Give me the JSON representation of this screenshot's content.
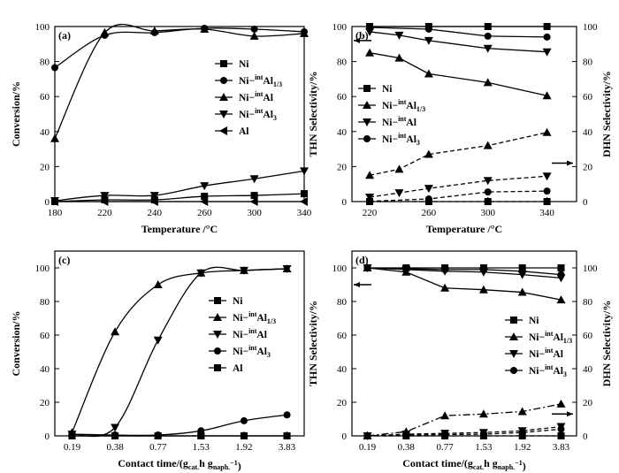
{
  "chart_data": [
    {
      "type": "line",
      "panel_label": "(a)",
      "xlabel": "Temperature /°C",
      "ylabel": "Conversion/%",
      "x_categories": [
        "180",
        "220",
        "240",
        "260",
        "300",
        "340"
      ],
      "xlim": [
        0,
        5
      ],
      "ylim": [
        0,
        100
      ],
      "yticks": [
        "0",
        "20",
        "40",
        "60",
        "80",
        "100"
      ],
      "legend_position": "right",
      "series": [
        {
          "name": "Ni",
          "marker": "square",
          "x": [
            0,
            1,
            2,
            3,
            4,
            5
          ],
          "values": [
            0,
            1,
            1,
            3,
            3.5,
            4.5
          ]
        },
        {
          "name": "Ni-intAl1/3",
          "marker": "circle",
          "x": [
            0,
            1,
            2,
            3,
            4,
            5
          ],
          "values": [
            76.5,
            95,
            96.5,
            99,
            98.5,
            97
          ]
        },
        {
          "name": "Ni-intAl",
          "marker": "triangle-up",
          "x": [
            0,
            1,
            2,
            3,
            4,
            5
          ],
          "values": [
            36,
            96.5,
            97.5,
            98.5,
            94.5,
            96
          ]
        },
        {
          "name": "Ni-intAl3",
          "marker": "triangle-down",
          "x": [
            0,
            1,
            2,
            3,
            4,
            5
          ],
          "values": [
            0.5,
            3.5,
            3.5,
            9,
            13,
            17.5
          ]
        },
        {
          "name": "Al",
          "marker": "triangle-left",
          "x": [
            0,
            1,
            2,
            3,
            4,
            5
          ],
          "values": [
            0,
            0,
            0,
            0,
            0,
            0
          ]
        }
      ]
    },
    {
      "type": "line",
      "panel_label": "(b)",
      "xlabel": "Temperature /°C",
      "ylabel": "THN Selectivity/%",
      "y2label": "DHN Selectivity/%",
      "x_categories": [
        "220",
        "260",
        "300",
        "340"
      ],
      "xlim": [
        -0.3,
        3.5
      ],
      "ylim": [
        0,
        100
      ],
      "yticks": [
        "0",
        "20",
        "40",
        "60",
        "80",
        "100"
      ],
      "legend_position": "left",
      "series": [
        {
          "name": "Ni",
          "marker": "square",
          "axis": "THN",
          "x": [
            0,
            1,
            2,
            3
          ],
          "values": [
            100,
            100,
            100,
            100
          ]
        },
        {
          "name": "Ni-intAl1/3",
          "marker": "triangle-up",
          "axis": "THN",
          "x": [
            0,
            0.5,
            1,
            2,
            3
          ],
          "values": [
            85,
            82,
            73,
            68,
            60.5
          ]
        },
        {
          "name": "Ni-intAl",
          "marker": "triangle-down",
          "axis": "THN",
          "x": [
            0,
            0.5,
            1,
            2,
            3
          ],
          "values": [
            97,
            95,
            92,
            87.5,
            85.5
          ]
        },
        {
          "name": "Ni-intAl3",
          "marker": "circle",
          "axis": "THN",
          "x": [
            0,
            1,
            2,
            3
          ],
          "values": [
            99.5,
            98.5,
            94.5,
            94
          ]
        },
        {
          "name": "Ni-intAl1/3 (DHN)",
          "marker": "triangle-up",
          "axis": "DHN",
          "x": [
            0,
            0.5,
            1,
            2,
            3
          ],
          "values": [
            15,
            18.5,
            27,
            32,
            39.5
          ]
        },
        {
          "name": "Ni-intAl (DHN)",
          "marker": "triangle-down",
          "axis": "DHN",
          "x": [
            0,
            0.5,
            1,
            2,
            3
          ],
          "values": [
            2.5,
            5,
            7.5,
            12,
            14.5
          ]
        },
        {
          "name": "Ni-intAl3 (DHN)",
          "marker": "circle",
          "axis": "DHN",
          "x": [
            0,
            1,
            2,
            3
          ],
          "values": [
            0.2,
            1.5,
            5.5,
            6
          ]
        },
        {
          "name": "Ni (DHN)",
          "marker": "square",
          "axis": "DHN",
          "x": [
            0,
            1,
            2,
            3
          ],
          "values": [
            0,
            0,
            0,
            0
          ]
        }
      ],
      "arrows": [
        {
          "axis": "THN",
          "direction": "left",
          "value": 92
        },
        {
          "axis": "DHN",
          "direction": "right",
          "value": 22
        }
      ]
    },
    {
      "type": "line",
      "panel_label": "(c)",
      "xlabel": "Contact time/(gcat.h gnaph.−1)",
      "ylabel": "Conversion/%",
      "x_categories": [
        "0.19",
        "0.38",
        "0.77",
        "1.53",
        "1.92",
        "3.83"
      ],
      "xlim": [
        -0.4,
        5.4
      ],
      "ylim": [
        0,
        110
      ],
      "yticks": [
        "0",
        "20",
        "40",
        "60",
        "80",
        "100"
      ],
      "legend_position": "right",
      "series": [
        {
          "name": "Ni",
          "marker": "square",
          "x": [
            0,
            1,
            2,
            3,
            4,
            5
          ],
          "values": [
            0,
            0,
            0,
            0,
            0,
            0
          ]
        },
        {
          "name": "Ni-intAl1/3",
          "marker": "triangle-up",
          "x": [
            0,
            1,
            2,
            3,
            4,
            5
          ],
          "values": [
            2,
            62,
            90,
            97,
            98.5,
            99.5
          ]
        },
        {
          "name": "Ni-intAl",
          "marker": "triangle-down",
          "x": [
            0,
            1,
            2,
            3,
            4,
            5
          ],
          "values": [
            1,
            5,
            57,
            97,
            98.5,
            99.5
          ]
        },
        {
          "name": "Ni-intAl3",
          "marker": "circle",
          "x": [
            0,
            1,
            2,
            3,
            4,
            5
          ],
          "values": [
            1,
            0.5,
            0.5,
            3,
            9,
            12.5
          ]
        },
        {
          "name": "Al",
          "marker": "square",
          "x": [
            0,
            1,
            2,
            3,
            4,
            5
          ],
          "values": [
            0,
            0,
            0,
            0,
            0,
            0
          ]
        }
      ]
    },
    {
      "type": "line",
      "panel_label": "(d)",
      "xlabel": "Contact time/(gcat.h gnaph.−1)",
      "ylabel": "THN Selectivity/%",
      "y2label": "DHN Selectivity/%",
      "x_categories": [
        "0.19",
        "0.38",
        "0.77",
        "1.53",
        "1.92",
        "3.83"
      ],
      "xlim": [
        -0.4,
        5.4
      ],
      "ylim": [
        0,
        110
      ],
      "yticks": [
        "0",
        "20",
        "40",
        "60",
        "80",
        "100"
      ],
      "legend_position": "right",
      "series": [
        {
          "name": "Ni",
          "marker": "square",
          "axis": "THN",
          "x": [
            0,
            1,
            2,
            3,
            4,
            5
          ],
          "values": [
            100,
            100,
            100,
            100,
            100,
            100
          ]
        },
        {
          "name": "Ni-intAl1/3",
          "marker": "triangle-up",
          "axis": "THN",
          "x": [
            0,
            1,
            2,
            3,
            4,
            5
          ],
          "values": [
            100,
            97.5,
            88,
            87,
            85.5,
            81
          ]
        },
        {
          "name": "Ni-intAl",
          "marker": "triangle-down",
          "axis": "THN",
          "x": [
            0,
            1,
            2,
            3,
            4,
            5
          ],
          "values": [
            100,
            99,
            98,
            97.5,
            96,
            94
          ]
        },
        {
          "name": "Ni-intAl3",
          "marker": "circle",
          "axis": "THN",
          "x": [
            0,
            1,
            2,
            3,
            4,
            5
          ],
          "values": [
            100,
            99.5,
            99,
            99,
            98,
            96
          ]
        },
        {
          "name": "Ni-intAl1/3 (DHN)",
          "marker": "triangle-up",
          "axis": "DHN",
          "x": [
            0,
            1,
            2,
            3,
            4,
            5
          ],
          "values": [
            0,
            2.5,
            12,
            13,
            14.5,
            19
          ]
        },
        {
          "name": "Ni-intAl (DHN)",
          "marker": "triangle-down",
          "axis": "DHN",
          "x": [
            0,
            1,
            2,
            3,
            4,
            5
          ],
          "values": [
            0,
            1,
            1.5,
            2,
            3,
            5.5
          ]
        },
        {
          "name": "Ni-intAl3 (DHN)",
          "marker": "circle",
          "axis": "DHN",
          "x": [
            0,
            1,
            2,
            3,
            4,
            5
          ],
          "values": [
            0,
            0.5,
            0.8,
            1,
            2,
            4
          ]
        },
        {
          "name": "Ni (DHN)",
          "marker": "square",
          "axis": "DHN",
          "x": [
            0,
            1,
            2,
            3,
            4,
            5
          ],
          "values": [
            0,
            0,
            0,
            0,
            0,
            0
          ]
        }
      ],
      "arrows": [
        {
          "axis": "THN",
          "direction": "left",
          "value": 90
        },
        {
          "axis": "DHN",
          "direction": "right",
          "value": 13
        }
      ]
    }
  ]
}
